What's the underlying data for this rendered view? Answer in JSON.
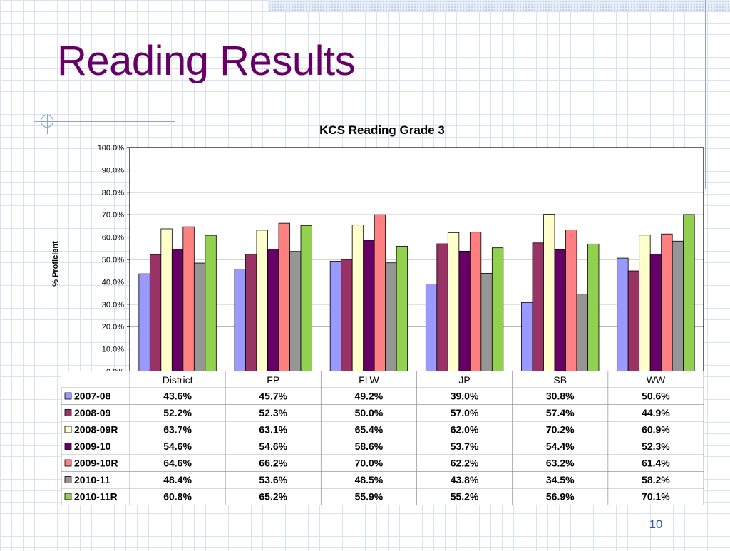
{
  "slide": {
    "title": "Reading Results",
    "page_number": "10"
  },
  "colors": {
    "title": "#660066",
    "accent": "#8ea3d3"
  },
  "chart_data": {
    "type": "bar",
    "title": "KCS Reading Grade 3",
    "ylabel": "% Proficient",
    "xlabel": "",
    "ylim": [
      0,
      100
    ],
    "yticks": [
      "0.0%",
      "10.0%",
      "20.0%",
      "30.0%",
      "40.0%",
      "50.0%",
      "60.0%",
      "70.0%",
      "80.0%",
      "90.0%",
      "100.0%"
    ],
    "grid": true,
    "legend": "data-table",
    "categories": [
      "District",
      "FP",
      "FLW",
      "JP",
      "SB",
      "WW"
    ],
    "series": [
      {
        "name": "2007-08",
        "color": "#9999ff",
        "values": [
          43.6,
          45.7,
          49.2,
          39.0,
          30.8,
          50.6
        ],
        "labels": [
          "43.6%",
          "45.7%",
          "49.2%",
          "39.0%",
          "30.8%",
          "50.6%"
        ]
      },
      {
        "name": "2008-09",
        "color": "#993366",
        "values": [
          52.2,
          52.3,
          50.0,
          57.0,
          57.4,
          44.9
        ],
        "labels": [
          "52.2%",
          "52.3%",
          "50.0%",
          "57.0%",
          "57.4%",
          "44.9%"
        ]
      },
      {
        "name": "2008-09R",
        "color": "#ffffcc",
        "values": [
          63.7,
          63.1,
          65.4,
          62.0,
          70.2,
          60.9
        ],
        "labels": [
          "63.7%",
          "63.1%",
          "65.4%",
          "62.0%",
          "70.2%",
          "60.9%"
        ]
      },
      {
        "name": "2009-10",
        "color": "#660066",
        "values": [
          54.6,
          54.6,
          58.6,
          53.7,
          54.4,
          52.3
        ],
        "labels": [
          "54.6%",
          "54.6%",
          "58.6%",
          "53.7%",
          "54.4%",
          "52.3%"
        ]
      },
      {
        "name": "2009-10R",
        "color": "#ff8080",
        "values": [
          64.6,
          66.2,
          70.0,
          62.2,
          63.2,
          61.4
        ],
        "labels": [
          "64.6%",
          "66.2%",
          "70.0%",
          "62.2%",
          "63.2%",
          "61.4%"
        ]
      },
      {
        "name": "2010-11",
        "color": "#969696",
        "values": [
          48.4,
          53.6,
          48.5,
          43.8,
          34.5,
          58.2
        ],
        "labels": [
          "48.4%",
          "53.6%",
          "48.5%",
          "43.8%",
          "34.5%",
          "58.2%"
        ]
      },
      {
        "name": "2010-11R",
        "color": "#92d050",
        "values": [
          60.8,
          65.2,
          55.9,
          55.2,
          56.9,
          70.1
        ],
        "labels": [
          "60.8%",
          "65.2%",
          "55.9%",
          "55.2%",
          "56.9%",
          "70.1%"
        ]
      }
    ]
  }
}
